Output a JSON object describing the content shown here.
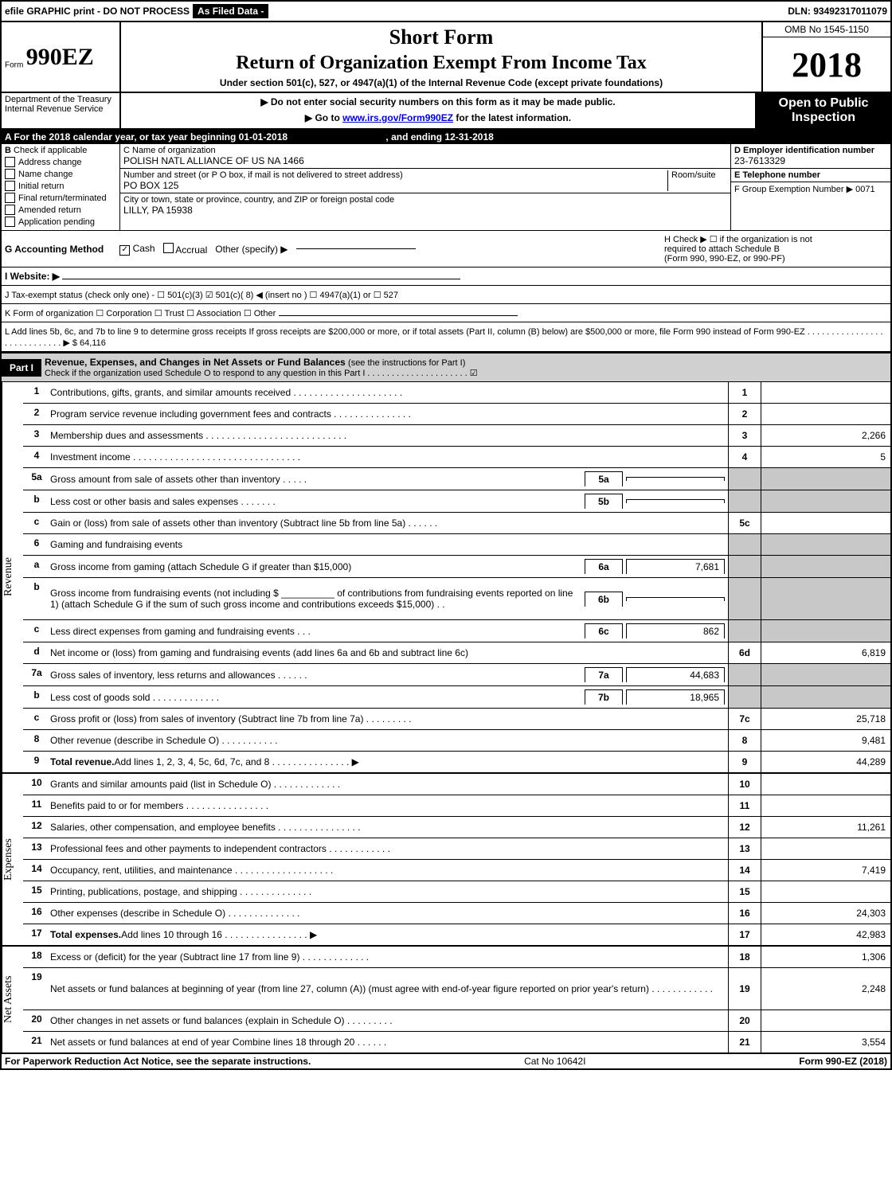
{
  "top": {
    "efile": "efile GRAPHIC print - DO NOT PROCESS",
    "filed": "As Filed Data -",
    "dln": "DLN: 93492317011079"
  },
  "header": {
    "form_prefix": "Form",
    "form_num": "990EZ",
    "short": "Short Form",
    "title": "Return of Organization Exempt From Income Tax",
    "subtitle": "Under section 501(c), 527, or 4947(a)(1) of the Internal Revenue Code (except private foundations)",
    "omb": "OMB No 1545-1150",
    "year": "2018",
    "dept1": "Department of the Treasury",
    "dept2": "Internal Revenue Service",
    "warn1": "▶ Do not enter social security numbers on this form as it may be made public.",
    "warn2": "▶ Go to www.irs.gov/Form990EZ for the latest information.",
    "open_label": "Open to Public Inspection"
  },
  "sectionA": {
    "line": "A  For the 2018 calendar year, or tax year beginning 01-01-2018",
    "ending": ", and ending 12-31-2018"
  },
  "boxB": {
    "label": "B",
    "header": "Check if applicable",
    "address_change": "Address change",
    "name_change": "Name change",
    "initial": "Initial return",
    "final": "Final return/terminated",
    "amended": "Amended return",
    "app_pending": "Application pending"
  },
  "boxC": {
    "name_label": "C Name of organization",
    "name_val": "POLISH NATL ALLIANCE OF US NA 1466",
    "street_label": "Number and street (or P O box, if mail is not delivered to street address)",
    "room_label": "Room/suite",
    "street_val": "PO BOX 125",
    "city_label": "City or town, state or province, country, and ZIP or foreign postal code",
    "city_val": "LILLY, PA  15938"
  },
  "boxD": {
    "label": "D Employer identification number",
    "val": "23-7613329"
  },
  "boxE": {
    "label": "E Telephone number",
    "val": ""
  },
  "boxF": {
    "label": "F Group Exemption Number   ▶ 0071"
  },
  "boxG": {
    "label": "G Accounting Method",
    "cash": "Cash",
    "accrual": "Accrual",
    "other": "Other (specify) ▶"
  },
  "boxH": {
    "line1": "H   Check ▶  ☐  if the organization is not",
    "line2": "required to attach Schedule B",
    "line3": "(Form 990, 990-EZ, or 990-PF)"
  },
  "boxI": {
    "label": "I Website: ▶"
  },
  "boxJ": {
    "label": "J Tax-exempt status (check only one) - ☐ 501(c)(3) ☑ 501(c)( 8) ◀ (insert no ) ☐ 4947(a)(1) or ☐ 527"
  },
  "boxK": {
    "label": "K Form of organization    ☐ Corporation  ☐ Trust  ☐ Association  ☐ Other"
  },
  "boxL": {
    "text": "L Add lines 5b, 6c, and 7b to line 9 to determine gross receipts  If gross receipts are $200,000 or more, or if total assets (Part II, column (B) below) are $500,000 or more, file Form 990 instead of Form 990-EZ  .  .  .  .  .  .  .  .  .  .  .  .  .  .  .  .  .  .  .  .  .  .  .  .  .  .  .  . ▶ $ 64,116"
  },
  "part1": {
    "label": "Part I",
    "title": "Revenue, Expenses, and Changes in Net Assets or Fund Balances",
    "sub": "(see the instructions for Part I)",
    "check_line": "Check if the organization used Schedule O to respond to any question in this Part I .  .  .  .  .  .  .  .  .  .  .  .  .  .  .  .  .  .  .  .  .  ☑"
  },
  "sections": {
    "revenue": "Revenue",
    "expenses": "Expenses",
    "netassets": "Net Assets"
  },
  "lines": [
    {
      "n": "1",
      "desc": "Contributions, gifts, grants, and similar amounts received .  .  .  .  .  .  .  .  .  .  .  .  .  .  .  .  .  .  .  .  .",
      "box": "1",
      "val": ""
    },
    {
      "n": "2",
      "desc": "Program service revenue including government fees and contracts .  .  .  .  .  .  .  .  .  .  .  .  .  .  .",
      "box": "2",
      "val": ""
    },
    {
      "n": "3",
      "desc": "Membership dues and assessments .  .  .  .  .  .  .  .  .  .  .  .  .  .  .  .  .  .  .  .  .  .  .  .  .  .  .",
      "box": "3",
      "val": "2,266"
    },
    {
      "n": "4",
      "desc": "Investment income .  .  .  .  .  .  .  .  .  .  .  .  .  .  .  .  .  .  .  .  .  .  .  .  .  .  .  .  .  .  .  .",
      "box": "4",
      "val": "5"
    },
    {
      "n": "5a",
      "desc_pre": "Gross amount from sale of assets other than inventory .  .  .  .  .",
      "inline_box": "5a",
      "inline_val": "",
      "shaded": true
    },
    {
      "n": "b",
      "desc_pre": "Less  cost or other basis and sales expenses .  .  .  .  .  .  .",
      "inline_box": "5b",
      "inline_val": "",
      "shaded": true
    },
    {
      "n": "c",
      "desc": "Gain or (loss) from sale of assets other than inventory (Subtract line 5b from line 5a) .  .  .  .  .  .",
      "box": "5c",
      "val": ""
    },
    {
      "n": "6",
      "desc": "Gaming and fundraising events",
      "shaded": true
    },
    {
      "n": "a",
      "desc_pre": "Gross income from gaming (attach Schedule G if greater than $15,000)",
      "inline_box": "6a",
      "inline_val": "7,681",
      "shaded": true
    },
    {
      "n": "b",
      "desc_full": "Gross income from fundraising events (not including $ __________ of contributions from fundraising events reported on line 1) (attach Schedule G if the sum of such gross income and contributions exceeds $15,000)   .  .",
      "inline_box": "6b",
      "inline_val": "",
      "shaded": true,
      "tall": true
    },
    {
      "n": "c",
      "desc_pre": "Less  direct expenses from gaming and fundraising events    .  .  .",
      "inline_box": "6c",
      "inline_val": "862",
      "shaded": true
    },
    {
      "n": "d",
      "desc": "Net income or (loss) from gaming and fundraising events (add lines 6a and 6b and subtract line 6c)",
      "box": "6d",
      "val": "6,819"
    },
    {
      "n": "7a",
      "desc_pre": "Gross sales of inventory, less returns and allowances .  .  .  .  .  .",
      "inline_box": "7a",
      "inline_val": "44,683",
      "shaded": true
    },
    {
      "n": "b",
      "desc_pre": "Less  cost of goods sold           .  .  .  .  .  .  .  .  .  .  .  .  .",
      "inline_box": "7b",
      "inline_val": "18,965",
      "shaded": true
    },
    {
      "n": "c",
      "desc": "Gross profit or (loss) from sales of inventory (Subtract line 7b from line 7a) .  .  .  .  .  .  .  .  .",
      "box": "7c",
      "val": "25,718"
    },
    {
      "n": "8",
      "desc": "Other revenue (describe in Schedule O)                                  .  .  .  .  .  .  .  .  .  .  .",
      "box": "8",
      "val": "9,481"
    },
    {
      "n": "9",
      "desc_b": "Total revenue.",
      "desc": " Add lines 1, 2, 3, 4, 5c, 6d, 7c, and 8  .  .  .  .  .  .  .  .  .  .  .  .  .  .  . ▶",
      "box": "9",
      "val": "44,289"
    }
  ],
  "exp_lines": [
    {
      "n": "10",
      "desc": "Grants and similar amounts paid (list in Schedule O)           .  .  .  .  .  .  .  .  .  .  .  .  .",
      "box": "10",
      "val": ""
    },
    {
      "n": "11",
      "desc": "Benefits paid to or for members                      .  .  .  .  .  .  .  .  .  .  .  .  .  .  .  .",
      "box": "11",
      "val": ""
    },
    {
      "n": "12",
      "desc": "Salaries, other compensation, and employee benefits .  .  .  .  .  .  .  .  .  .  .  .  .  .  .  .",
      "box": "12",
      "val": "11,261"
    },
    {
      "n": "13",
      "desc": "Professional fees and other payments to independent contractors  .  .  .  .  .  .  .  .  .  .  .  .",
      "box": "13",
      "val": ""
    },
    {
      "n": "14",
      "desc": "Occupancy, rent, utilities, and maintenance .  .  .  .  .  .  .  .  .  .  .  .  .  .  .  .  .  .  .",
      "box": "14",
      "val": "7,419"
    },
    {
      "n": "15",
      "desc": "Printing, publications, postage, and shipping              .  .  .  .  .  .  .  .  .  .  .  .  .  .",
      "box": "15",
      "val": ""
    },
    {
      "n": "16",
      "desc": "Other expenses (describe in Schedule O)                    .  .  .  .  .  .  .  .  .  .  .  .  .  .",
      "box": "16",
      "val": "24,303"
    },
    {
      "n": "17",
      "desc_b": "Total expenses.",
      "desc": " Add lines 10 through 16        .  .  .  .  .  .  .  .  .  .  .  .  .  .  .  . ▶",
      "box": "17",
      "val": "42,983"
    }
  ],
  "net_lines": [
    {
      "n": "18",
      "desc": "Excess or (deficit) for the year (Subtract line 17 from line 9)       .  .  .  .  .  .  .  .  .  .  .  .  .",
      "box": "18",
      "val": "1,306"
    },
    {
      "n": "19",
      "desc": "Net assets or fund balances at beginning of year (from line 27, column (A)) (must agree with end-of-year figure reported on prior year's return)                  .  .  .  .  .  .  .  .  .  .  .  .",
      "box": "19",
      "val": "2,248",
      "tall": true
    },
    {
      "n": "20",
      "desc": "Other changes in net assets or fund balances (explain in Schedule O)     .  .  .  .  .  .  .  .  .",
      "box": "20",
      "val": ""
    },
    {
      "n": "21",
      "desc": "Net assets or fund balances at end of year  Combine lines 18 through 20        .  .  .  .  .  .",
      "box": "21",
      "val": "3,554"
    }
  ],
  "footer": {
    "left": "For Paperwork Reduction Act Notice, see the separate instructions.",
    "mid": "Cat No 10642I",
    "right": "Form 990-EZ (2018)"
  }
}
